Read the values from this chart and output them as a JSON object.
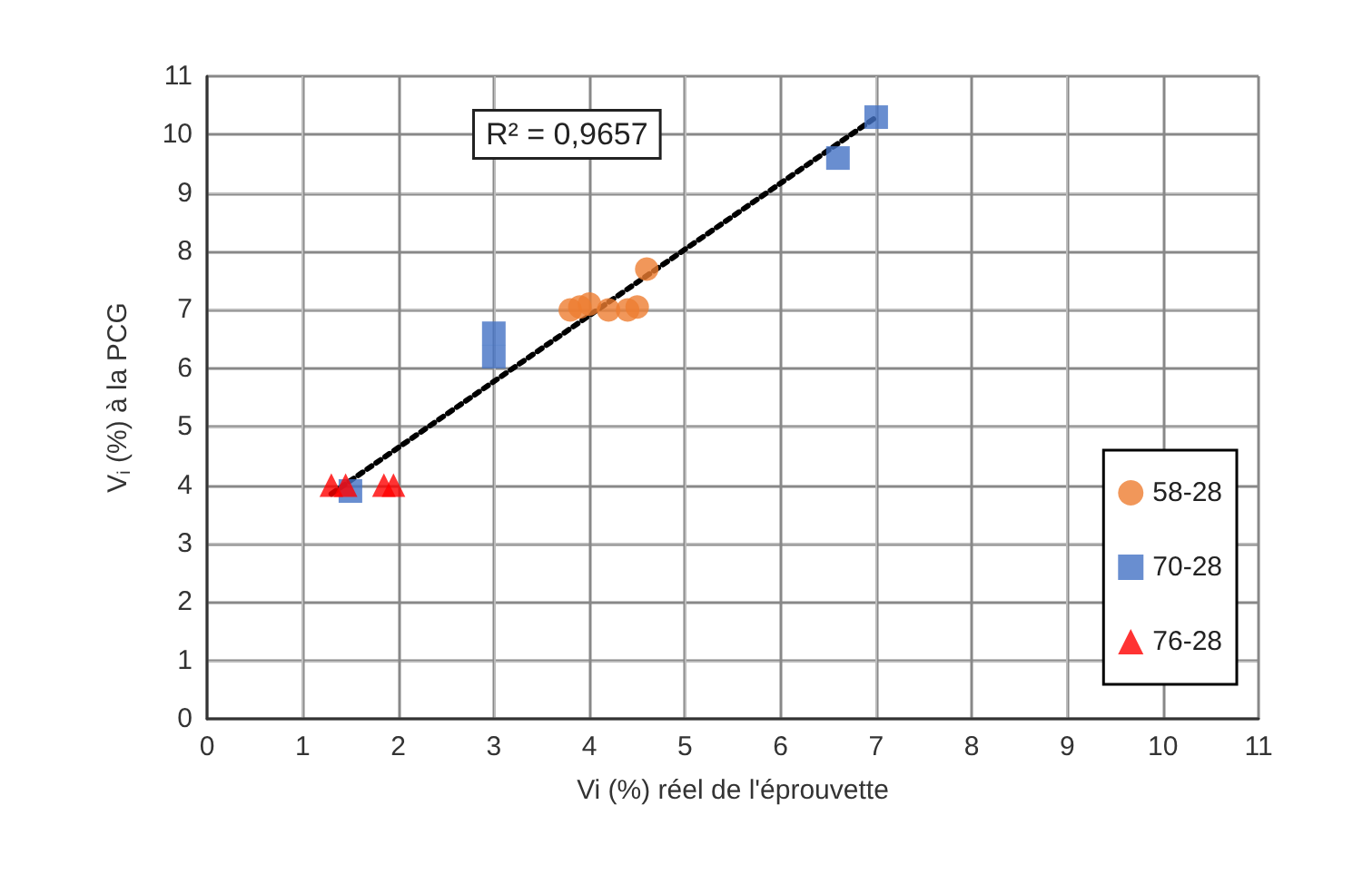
{
  "chart_data": {
    "type": "scatter",
    "xlabel": "Vi (%) réel de l'éprouvette",
    "ylabel": "V$_{i}$ (%) à la PCG",
    "xlim": [
      0,
      11
    ],
    "ylim": [
      0,
      11
    ],
    "xticks": [
      0,
      1,
      2,
      3,
      4,
      5,
      6,
      7,
      8,
      9,
      10,
      11
    ],
    "yticks": [
      0,
      1,
      2,
      3,
      4,
      5,
      6,
      7,
      8,
      9,
      10,
      11
    ],
    "grid": true,
    "legend": "bottom right",
    "annotations": [
      "R² = 0,9657"
    ],
    "series": [
      {
        "name": "58-28",
        "color": "#ed7d31",
        "marker": "circle",
        "x": [
          3.8,
          3.9,
          4.0,
          4.2,
          4.4,
          4.5,
          4.6
        ],
        "values": [
          7.0,
          7.05,
          7.1,
          7.0,
          7.0,
          7.05,
          7.7
        ]
      },
      {
        "name": "70-28",
        "color": "#4472c4",
        "marker": "square",
        "x": [
          1.5,
          3.0,
          3.0,
          6.6,
          7.0
        ],
        "values": [
          3.9,
          6.2,
          6.6,
          9.6,
          10.3
        ]
      },
      {
        "name": "76-28",
        "color": "#ff0000",
        "marker": "triangle",
        "x": [
          1.3,
          1.45,
          1.85,
          1.95
        ],
        "values": [
          4.0,
          4.0,
          4.0,
          4.0
        ]
      },
      {
        "type": "line",
        "color": "#000000",
        "marker": "none",
        "line_style": "dotted",
        "x": [
          1.3,
          7.0
        ],
        "values": [
          3.85,
          10.3
        ]
      }
    ]
  }
}
